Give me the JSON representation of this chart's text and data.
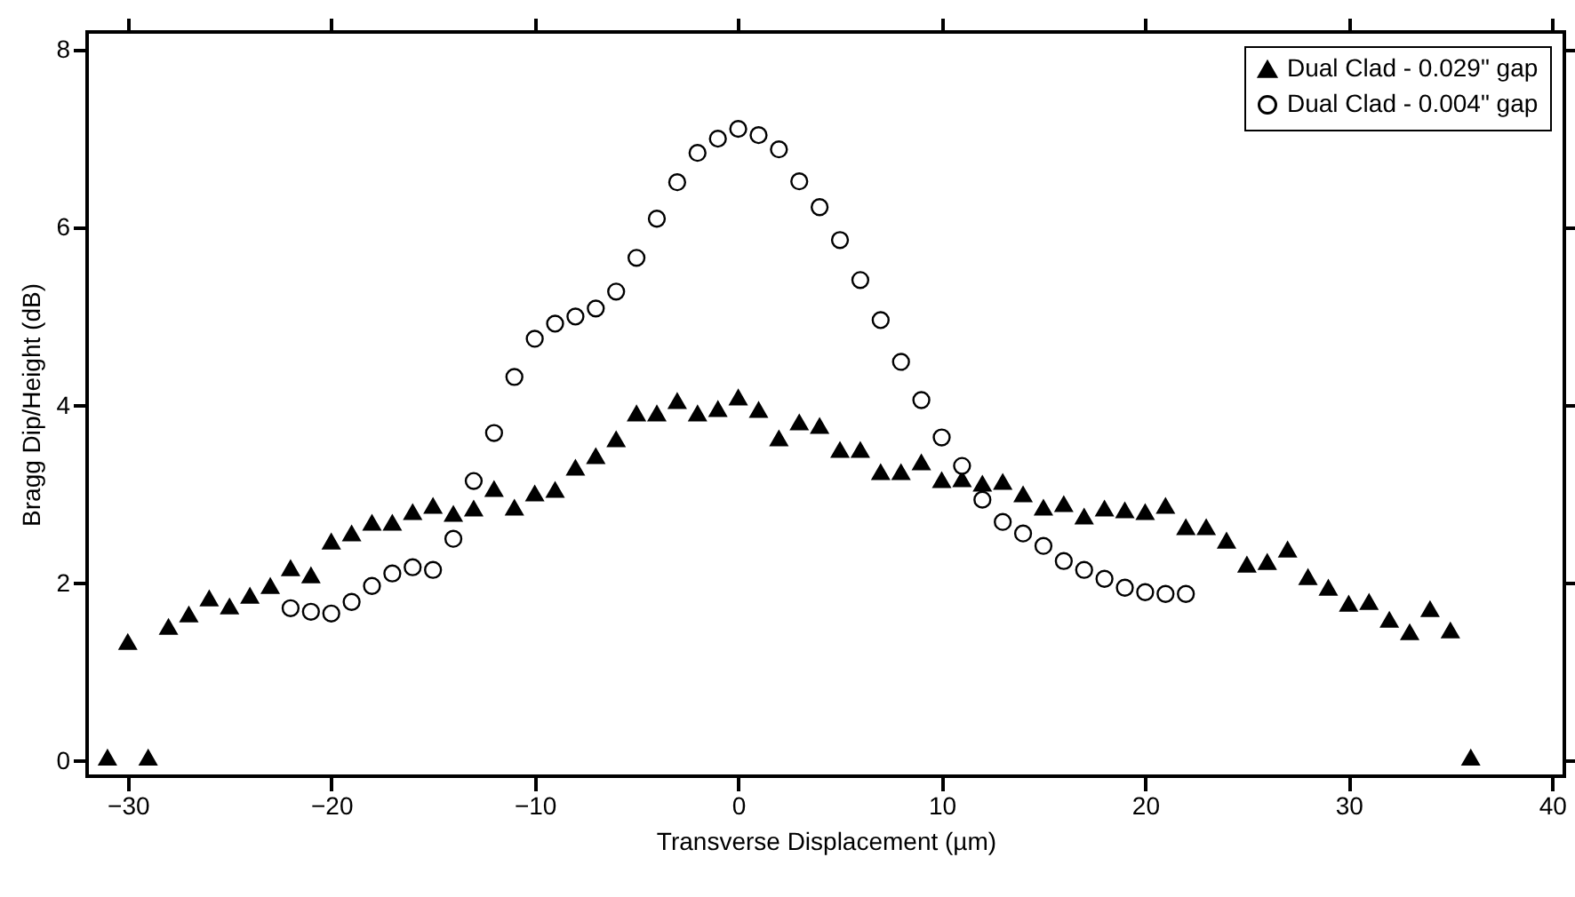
{
  "chart_data": {
    "type": "scatter",
    "xlabel": "Transverse Displacement (µm)",
    "ylabel": "Bragg Dip/Height (dB)",
    "xlim": [
      -32,
      40.6
    ],
    "ylim": [
      -0.17,
      8.2
    ],
    "xticks": [
      -30,
      -20,
      -10,
      0,
      10,
      20,
      30,
      40
    ],
    "yticks": [
      0,
      2,
      4,
      6,
      8
    ],
    "grid": false,
    "legend": "top right",
    "series": [
      {
        "name": "Dual Clad - 0.029\" gap",
        "color": "#000000",
        "marker": "triangle",
        "x": [
          -31,
          -30,
          -29,
          -28,
          -27,
          -26,
          -25,
          -24,
          -23,
          -22,
          -21,
          -20,
          -19,
          -18,
          -17,
          -16,
          -15,
          -14,
          -13,
          -12,
          -11,
          -10,
          -9,
          -8,
          -7,
          -6,
          -5,
          -4,
          -3,
          -2,
          -1,
          0,
          1,
          2,
          3,
          4,
          5,
          6,
          7,
          8,
          9,
          10,
          11,
          12,
          13,
          14,
          15,
          16,
          17,
          18,
          19,
          20,
          21,
          22,
          23,
          24,
          25,
          26,
          27,
          28,
          29,
          30,
          31,
          32,
          33,
          34,
          35,
          36
        ],
        "values": [
          0.04,
          1.34,
          0.04,
          1.51,
          1.65,
          1.83,
          1.74,
          1.86,
          1.97,
          2.17,
          2.09,
          2.47,
          2.56,
          2.68,
          2.68,
          2.8,
          2.87,
          2.78,
          2.84,
          3.06,
          2.85,
          3.01,
          3.05,
          3.3,
          3.43,
          3.62,
          3.91,
          3.91,
          4.05,
          3.91,
          3.96,
          4.09,
          3.95,
          3.63,
          3.81,
          3.77,
          3.5,
          3.5,
          3.25,
          3.25,
          3.36,
          3.16,
          3.17,
          3.12,
          3.14,
          3.0,
          2.85,
          2.89,
          2.75,
          2.84,
          2.82,
          2.8,
          2.87,
          2.63,
          2.63,
          2.48,
          2.21,
          2.24,
          2.38,
          2.07,
          1.95,
          1.77,
          1.79,
          1.59,
          1.45,
          1.71,
          1.47,
          0.04
        ]
      },
      {
        "name": "Dual Clad - 0.004\" gap",
        "color": "#000000",
        "marker": "circle",
        "x": [
          -22,
          -21,
          -20,
          -19,
          -18,
          -17,
          -16,
          -15,
          -14,
          -13,
          -12,
          -11,
          -10,
          -9,
          -8,
          -7,
          -6,
          -5,
          -4,
          -3,
          -2,
          -1,
          0,
          1,
          2,
          3,
          4,
          5,
          6,
          7,
          8,
          9,
          10,
          11,
          12,
          13,
          14,
          15,
          16,
          17,
          18,
          19,
          20,
          21,
          22
        ],
        "values": [
          1.72,
          1.68,
          1.66,
          1.79,
          1.97,
          2.11,
          2.18,
          2.15,
          2.5,
          3.15,
          3.69,
          4.32,
          4.75,
          4.92,
          5.0,
          5.09,
          5.28,
          5.66,
          6.1,
          6.51,
          6.84,
          7.0,
          7.11,
          7.04,
          6.88,
          6.52,
          6.23,
          5.86,
          5.41,
          4.96,
          4.49,
          4.06,
          3.64,
          3.32,
          2.94,
          2.69,
          2.56,
          2.42,
          2.25,
          2.15,
          2.05,
          1.95,
          1.9,
          1.88,
          1.88
        ]
      }
    ]
  }
}
